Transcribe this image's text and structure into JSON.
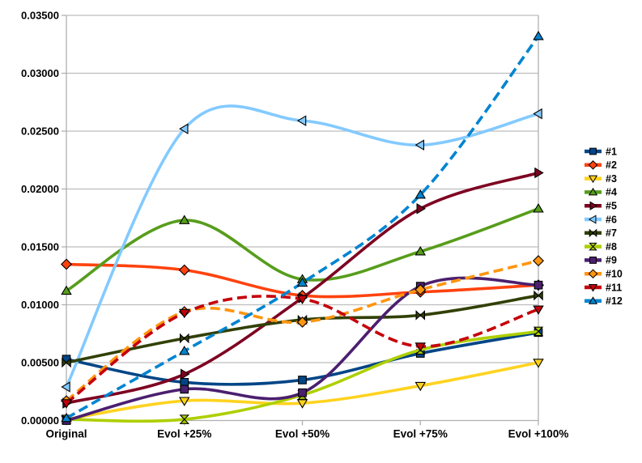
{
  "chart_data": {
    "type": "line",
    "title": "",
    "xlabel": "",
    "ylabel": "",
    "categories": [
      "Original",
      "Evol +25%",
      "Evol +50%",
      "Evol +75%",
      "Evol +100%"
    ],
    "y_axis": {
      "min": 0,
      "max": 0.035,
      "tick_step": 0.005,
      "tick_labels": [
        "0.00000",
        "0.00500",
        "0.01000",
        "0.01500",
        "0.02000",
        "0.02500",
        "0.03000",
        "0.03500"
      ]
    },
    "grid": "horizontal",
    "legend_position": "right",
    "line_smoothing": "spline",
    "series": [
      {
        "name": "#1",
        "color": "#004586",
        "line_style": "solid",
        "marker": "square",
        "values": [
          0.0053,
          0.0033,
          0.0035,
          0.0058,
          0.0076
        ]
      },
      {
        "name": "#2",
        "color": "#FF420E",
        "line_style": "solid",
        "marker": "diamond",
        "values": [
          0.0135,
          0.013,
          0.0108,
          0.0111,
          0.0117
        ]
      },
      {
        "name": "#3",
        "color": "#FFD320",
        "line_style": "solid",
        "marker": "triangle-down",
        "values": [
          0.0001,
          0.0017,
          0.0015,
          0.003,
          0.005
        ]
      },
      {
        "name": "#4",
        "color": "#579D1C",
        "line_style": "solid",
        "marker": "triangle-up",
        "values": [
          0.0112,
          0.0173,
          0.0122,
          0.0146,
          0.0183
        ]
      },
      {
        "name": "#5",
        "color": "#7E0021",
        "line_style": "solid",
        "marker": "triangle-right",
        "values": [
          0.0015,
          0.004,
          0.0106,
          0.0183,
          0.0214
        ]
      },
      {
        "name": "#6",
        "color": "#83CAFF",
        "line_style": "solid",
        "marker": "triangle-left",
        "values": [
          0.0029,
          0.0252,
          0.0259,
          0.0238,
          0.0265
        ]
      },
      {
        "name": "#7",
        "color": "#314004",
        "line_style": "solid",
        "marker": "bowtie",
        "values": [
          0.005,
          0.0071,
          0.0087,
          0.0091,
          0.0108
        ]
      },
      {
        "name": "#8",
        "color": "#AECF00",
        "line_style": "solid",
        "marker": "hourglass",
        "values": [
          0.0001,
          0.0001,
          0.0022,
          0.0061,
          0.0077
        ]
      },
      {
        "name": "#9",
        "color": "#4B1F6F",
        "line_style": "solid",
        "marker": "square",
        "values": [
          0.0,
          0.0027,
          0.0024,
          0.0116,
          0.0117
        ]
      },
      {
        "name": "#10",
        "color": "#FF950E",
        "line_style": "dashed",
        "marker": "diamond",
        "values": [
          0.0017,
          0.0094,
          0.0085,
          0.0113,
          0.0138
        ]
      },
      {
        "name": "#11",
        "color": "#C5000B",
        "line_style": "dashed",
        "marker": "triangle-down",
        "values": [
          0.0015,
          0.0093,
          0.0105,
          0.0064,
          0.0096
        ]
      },
      {
        "name": "#12",
        "color": "#0084D1",
        "line_style": "dashed",
        "marker": "triangle-up",
        "values": [
          0.0002,
          0.006,
          0.0119,
          0.0195,
          0.0332
        ]
      }
    ]
  },
  "colors": {
    "background": "#ffffff",
    "gridline": "#bdbdbd",
    "axis": "#b0b0b0",
    "text": "#000000"
  }
}
